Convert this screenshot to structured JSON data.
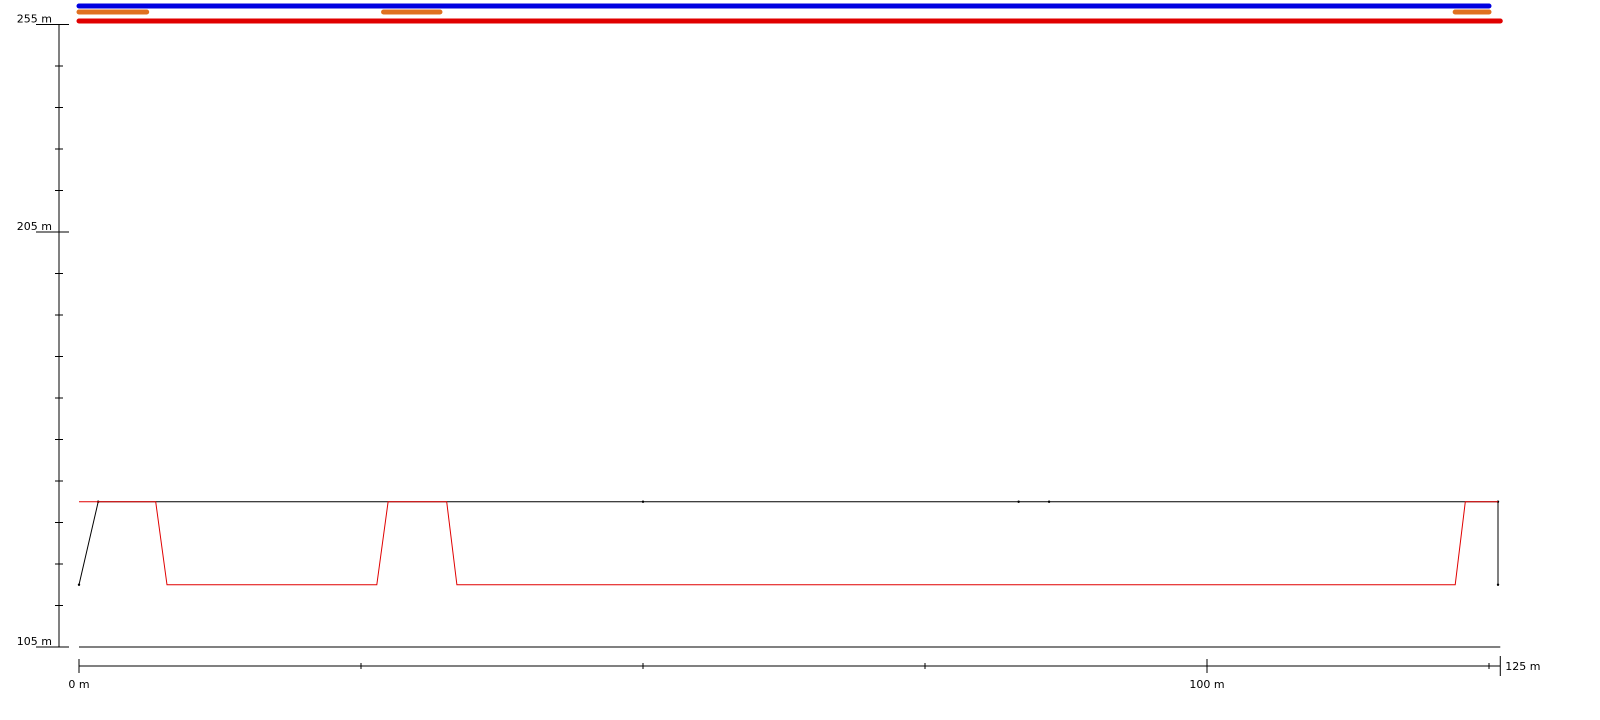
{
  "chart_data": {
    "type": "line",
    "title": "",
    "xlabel": "",
    "ylabel": "",
    "xlim": [
      0,
      126
    ],
    "ylim": [
      105,
      255
    ],
    "x_ticks": [
      {
        "value": 0,
        "label": "0 m"
      },
      {
        "value": 25,
        "label": ""
      },
      {
        "value": 50,
        "label": ""
      },
      {
        "value": 75,
        "label": ""
      },
      {
        "value": 100,
        "label": "100 m"
      },
      {
        "value": 125,
        "label": ""
      }
    ],
    "x_end_label": "125 m",
    "y_ticks": [
      {
        "value": 105,
        "label": "105 m"
      },
      {
        "value": 205,
        "label": "205 m"
      },
      {
        "value": 255,
        "label": "255 m"
      }
    ],
    "y_minor_step": 10,
    "series": [
      {
        "color": "#000000",
        "points": [
          [
            0,
            120
          ],
          [
            1.7,
            140
          ],
          [
            50,
            140
          ],
          [
            83.3,
            140
          ],
          [
            86,
            140
          ],
          [
            125.8,
            140
          ],
          [
            125.8,
            120
          ]
        ]
      },
      {
        "color": "#e00000",
        "points": [
          [
            0,
            140
          ],
          [
            6.8,
            140
          ],
          [
            7.8,
            120
          ],
          [
            26.4,
            120
          ],
          [
            27.4,
            140
          ],
          [
            32.6,
            140
          ],
          [
            33.5,
            120
          ],
          [
            122,
            120
          ],
          [
            122.9,
            140
          ],
          [
            125.8,
            140
          ]
        ]
      }
    ],
    "bars": [
      {
        "color": "#0000e0",
        "segments": [
          [
            0,
            125
          ]
        ]
      },
      {
        "color": "#e07020",
        "segments": [
          [
            0,
            6
          ],
          [
            27,
            32
          ],
          [
            122,
            125
          ]
        ]
      },
      {
        "color": "#e00000",
        "segments": [
          [
            0,
            126
          ]
        ]
      }
    ]
  }
}
